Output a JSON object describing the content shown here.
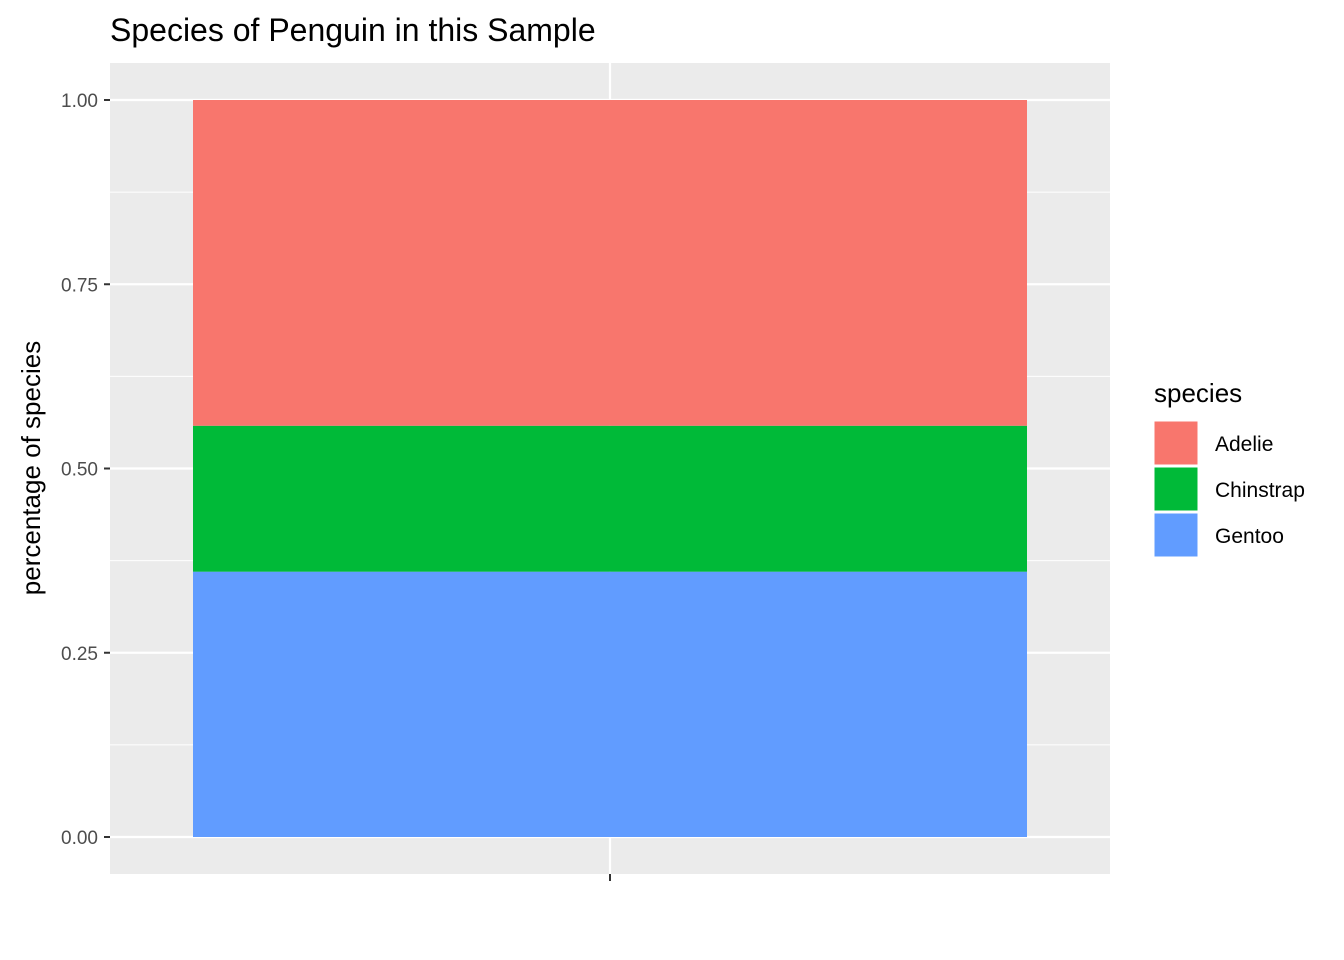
{
  "chart_data": {
    "type": "bar",
    "stacked": true,
    "title": "Species of Penguin in this Sample",
    "xlabel": "",
    "ylabel": "percentage of species",
    "categories": [
      ""
    ],
    "ylim": [
      -0.05,
      1.05
    ],
    "y_ticks": [
      0.0,
      0.25,
      0.5,
      0.75,
      1.0
    ],
    "y_tick_labels": [
      "0.00",
      "0.25",
      "0.50",
      "0.75",
      "1.00"
    ],
    "grid": true,
    "legend": {
      "title": "species",
      "position": "right"
    },
    "series": [
      {
        "name": "Adelie",
        "values": [
          0.442
        ],
        "color": "#F8766D"
      },
      {
        "name": "Chinstrap",
        "values": [
          0.198
        ],
        "color": "#00BA38"
      },
      {
        "name": "Gentoo",
        "values": [
          0.36
        ],
        "color": "#619CFF"
      }
    ],
    "stack_order_top_to_bottom": [
      "Adelie",
      "Chinstrap",
      "Gentoo"
    ],
    "panel_background": "#EBEBEB",
    "gridline_color": "#FFFFFF"
  }
}
